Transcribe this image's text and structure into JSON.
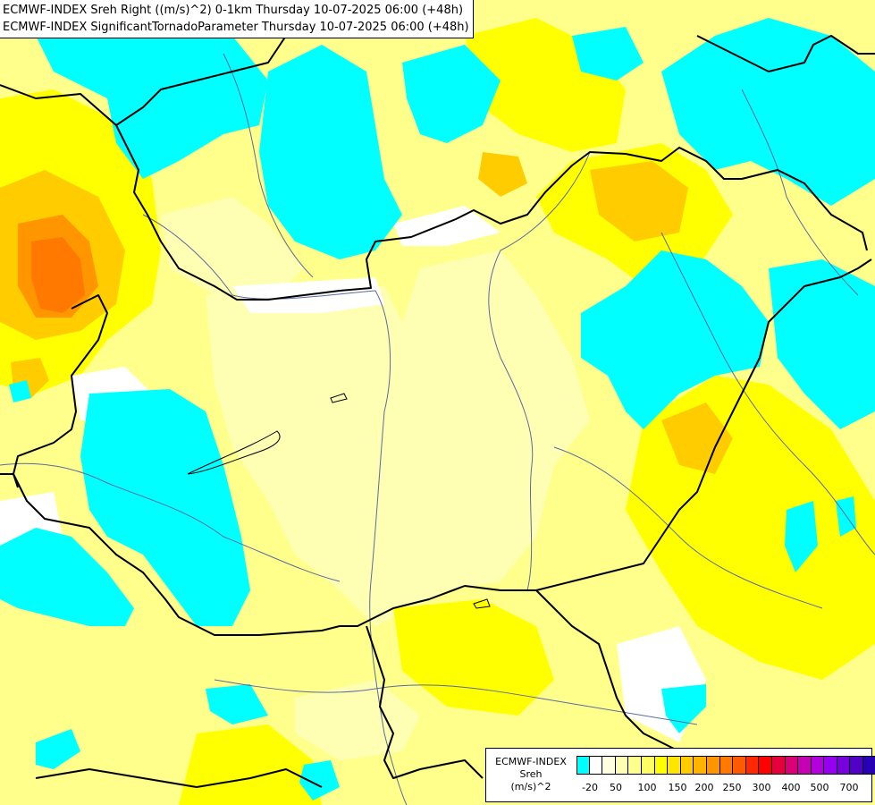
{
  "title": {
    "line1": "ECMWF-INDEX Sreh Right ((m/s)^2) 0-1km Thursday 10-07-2025 06:00 (+48h)",
    "line2": "ECMWF-INDEX SignificantTornadoParameter Thursday 10-07-2025 06:00 (+48h)"
  },
  "legend": {
    "model": "ECMWF-INDEX",
    "parameter": "Sreh",
    "unit": "(m/s)^2",
    "colors": [
      "#00ffff",
      "#ffffff",
      "#ffffe0",
      "#ffffb4",
      "#ffff8c",
      "#ffff64",
      "#ffff00",
      "#ffe600",
      "#ffcc00",
      "#ffb400",
      "#ff9600",
      "#ff7800",
      "#ff5a00",
      "#ff2800",
      "#ff0000",
      "#e6003c",
      "#dc0078",
      "#c800b4",
      "#b400dc",
      "#9600f0",
      "#7800dc",
      "#5000c8",
      "#2800b4",
      "#000080"
    ],
    "tick_labels": [
      "-20",
      "50",
      "100",
      "150",
      "200",
      "250",
      "300",
      "400",
      "500",
      "700"
    ]
  },
  "map": {
    "cyan": "#00ffff",
    "white": "#ffffff",
    "pale": "#ffffb4",
    "light_yellow": "#ffff8c",
    "yellow": "#ffff00",
    "gold": "#ffcc00",
    "orange": "#ff9600",
    "dark_orange": "#ff7800",
    "border_color": "#000000",
    "river_color": "#5a6aa0"
  }
}
